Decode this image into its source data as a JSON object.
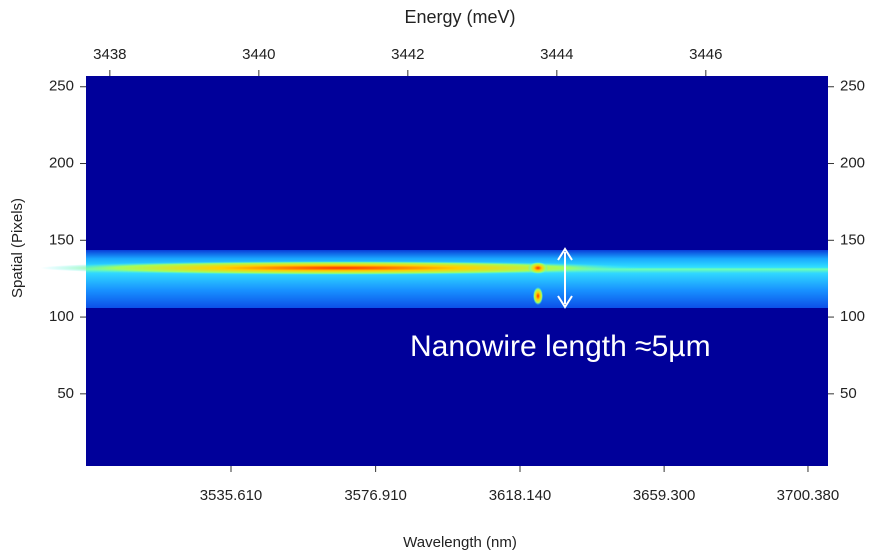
{
  "chart_data": {
    "type": "heatmap",
    "x_label": "Wavelength (nm)",
    "x2_label": "Energy (meV)",
    "y_label": "Spatial (Pixels)",
    "annotation": "Nanowire length ≈5µm",
    "xlim": [
      3494.2,
      3706.1
    ],
    "xticks": [
      {
        "value": 3535.61,
        "label": "3535.610"
      },
      {
        "value": 3576.91,
        "label": "3576.910"
      },
      {
        "value": 3618.14,
        "label": "3618.140"
      },
      {
        "value": 3659.3,
        "label": "3659.300"
      },
      {
        "value": 3700.38,
        "label": "3700.380"
      }
    ],
    "x2lim": [
      3437.68,
      3447.64
    ],
    "x2ticks": [
      3438,
      3440,
      3442,
      3444,
      3446
    ],
    "ylim": [
      3,
      257
    ],
    "yticks": [
      50,
      100,
      150,
      200,
      250
    ]
  }
}
